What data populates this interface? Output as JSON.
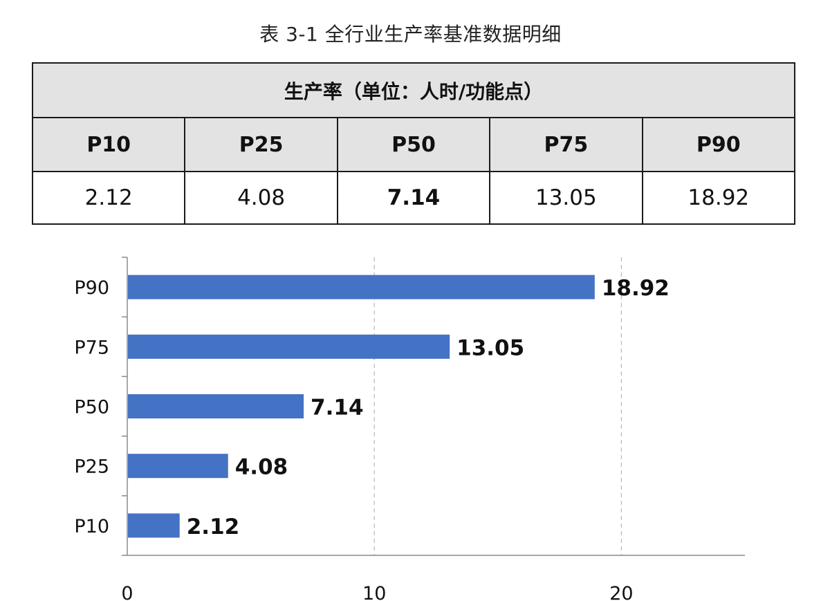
{
  "caption": "表 3-1  全行业生产率基准数据明细",
  "table": {
    "group_header": "生产率（单位：人时/功能点）",
    "columns": [
      "P10",
      "P25",
      "P50",
      "P75",
      "P90"
    ],
    "values": [
      "2.12",
      "4.08",
      "7.14",
      "13.05",
      "18.92"
    ],
    "emphasized_column": "P50"
  },
  "chart_data": {
    "type": "bar",
    "orientation": "horizontal",
    "categories": [
      "P10",
      "P25",
      "P50",
      "P75",
      "P90"
    ],
    "values": [
      2.12,
      4.08,
      7.14,
      13.05,
      18.92
    ],
    "data_labels": [
      "2.12",
      "4.08",
      "7.14",
      "13.05",
      "18.92"
    ],
    "xlim": [
      0,
      25
    ],
    "x_ticks": [
      0,
      10,
      20
    ],
    "x_tick_labels": [
      "0",
      "10",
      "20"
    ],
    "grid": "vertical dashed",
    "bar_color": "#4472c4"
  }
}
